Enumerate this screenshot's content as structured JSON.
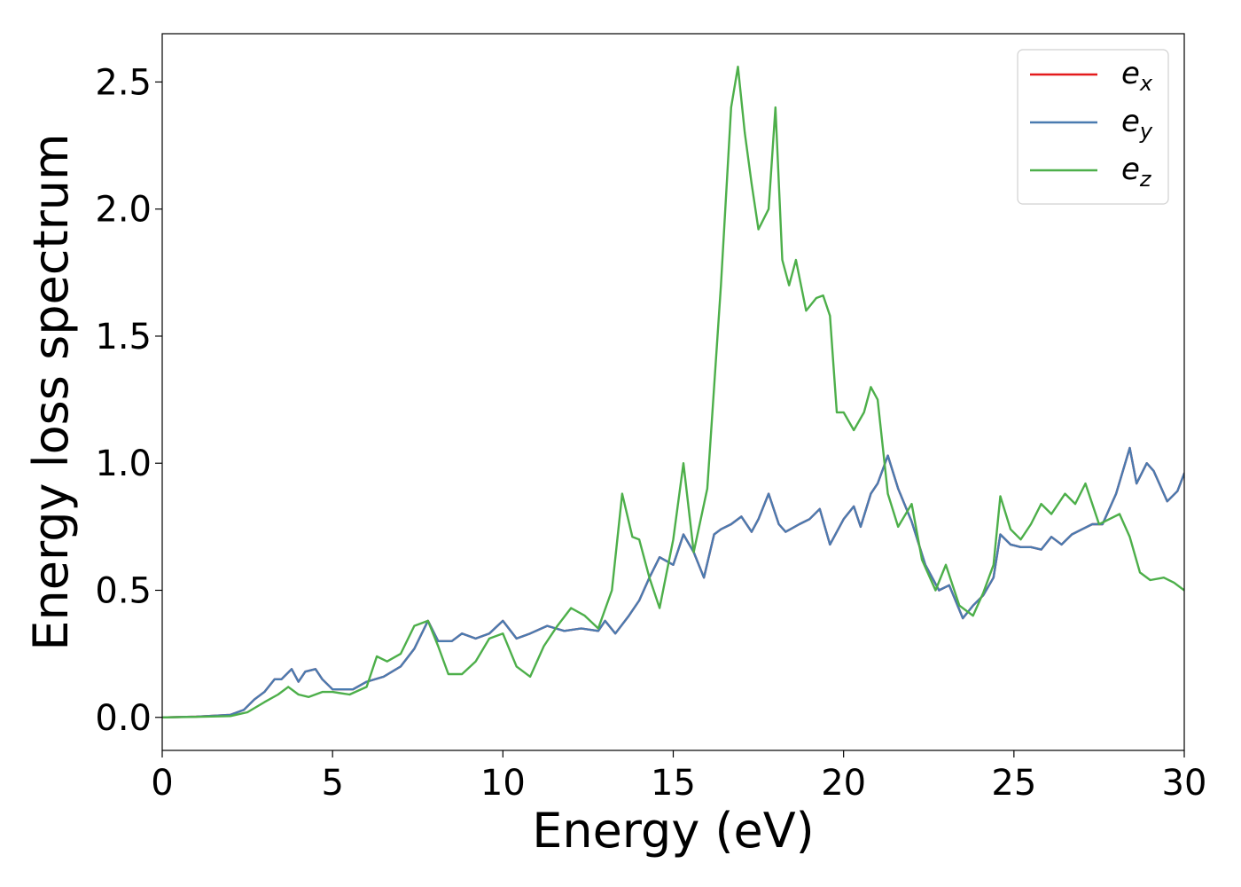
{
  "chart_data": {
    "type": "line",
    "title": "",
    "xlabel": "Energy (eV)",
    "ylabel": "Energy loss spectrum",
    "xlim": [
      0,
      30
    ],
    "ylim": [
      -0.13,
      2.69
    ],
    "xticks": [
      0,
      5,
      10,
      15,
      20,
      25,
      30
    ],
    "xtick_labels": [
      "0",
      "5",
      "10",
      "15",
      "20",
      "25",
      "30"
    ],
    "yticks": [
      0.0,
      0.5,
      1.0,
      1.5,
      2.0,
      2.5
    ],
    "ytick_labels": [
      "0.0",
      "0.5",
      "1.0",
      "1.5",
      "2.0",
      "2.5"
    ],
    "grid": false,
    "legend_position": "top-right",
    "series": [
      {
        "name": "e_x",
        "legend_base": "e",
        "legend_sub": "x",
        "color": "#e41a1c",
        "x": [
          0,
          1,
          2,
          2.4,
          2.7,
          3.0,
          3.3,
          3.5,
          3.8,
          4.0,
          4.2,
          4.5,
          4.7,
          5.0,
          5.3,
          5.6,
          6.0,
          6.5,
          7.0,
          7.4,
          7.8,
          8.1,
          8.5,
          8.8,
          9.2,
          9.6,
          10.0,
          10.4,
          10.8,
          11.3,
          11.8,
          12.3,
          12.8,
          13.0,
          13.3,
          13.7,
          14.0,
          14.3,
          14.6,
          15.0,
          15.3,
          15.6,
          15.9,
          16.2,
          16.4,
          16.7,
          17.0,
          17.3,
          17.5,
          17.8,
          18.1,
          18.3,
          18.7,
          19.0,
          19.3,
          19.6,
          20.0,
          20.3,
          20.5,
          20.8,
          21.0,
          21.3,
          21.6,
          22.0,
          22.4,
          22.8,
          23.1,
          23.5,
          23.8,
          24.1,
          24.4,
          24.6,
          24.9,
          25.2,
          25.5,
          25.8,
          26.1,
          26.4,
          26.7,
          27.0,
          27.3,
          27.6,
          28.0,
          28.4,
          28.6,
          28.9,
          29.1,
          29.5,
          29.8,
          30.0
        ],
        "y": [
          0,
          0.003,
          0.01,
          0.03,
          0.07,
          0.1,
          0.15,
          0.15,
          0.19,
          0.14,
          0.18,
          0.19,
          0.15,
          0.11,
          0.11,
          0.11,
          0.14,
          0.16,
          0.2,
          0.27,
          0.38,
          0.3,
          0.3,
          0.33,
          0.31,
          0.33,
          0.38,
          0.31,
          0.33,
          0.36,
          0.34,
          0.35,
          0.34,
          0.38,
          0.33,
          0.4,
          0.46,
          0.55,
          0.63,
          0.6,
          0.72,
          0.65,
          0.55,
          0.72,
          0.74,
          0.76,
          0.79,
          0.73,
          0.78,
          0.88,
          0.76,
          0.73,
          0.76,
          0.78,
          0.82,
          0.68,
          0.78,
          0.83,
          0.75,
          0.88,
          0.92,
          1.03,
          0.9,
          0.77,
          0.6,
          0.5,
          0.52,
          0.39,
          0.44,
          0.48,
          0.55,
          0.72,
          0.68,
          0.67,
          0.67,
          0.66,
          0.71,
          0.68,
          0.72,
          0.74,
          0.76,
          0.76,
          0.88,
          1.06,
          0.92,
          1.0,
          0.97,
          0.85,
          0.89,
          0.96
        ]
      },
      {
        "name": "e_y",
        "legend_base": "e",
        "legend_sub": "y",
        "color": "#4a7bb0",
        "x": [
          0,
          1,
          2,
          2.4,
          2.7,
          3.0,
          3.3,
          3.5,
          3.8,
          4.0,
          4.2,
          4.5,
          4.7,
          5.0,
          5.3,
          5.6,
          6.0,
          6.5,
          7.0,
          7.4,
          7.8,
          8.1,
          8.5,
          8.8,
          9.2,
          9.6,
          10.0,
          10.4,
          10.8,
          11.3,
          11.8,
          12.3,
          12.8,
          13.0,
          13.3,
          13.7,
          14.0,
          14.3,
          14.6,
          15.0,
          15.3,
          15.6,
          15.9,
          16.2,
          16.4,
          16.7,
          17.0,
          17.3,
          17.5,
          17.8,
          18.1,
          18.3,
          18.7,
          19.0,
          19.3,
          19.6,
          20.0,
          20.3,
          20.5,
          20.8,
          21.0,
          21.3,
          21.6,
          22.0,
          22.4,
          22.8,
          23.1,
          23.5,
          23.8,
          24.1,
          24.4,
          24.6,
          24.9,
          25.2,
          25.5,
          25.8,
          26.1,
          26.4,
          26.7,
          27.0,
          27.3,
          27.6,
          28.0,
          28.4,
          28.6,
          28.9,
          29.1,
          29.5,
          29.8,
          30.0
        ],
        "y": [
          0,
          0.003,
          0.01,
          0.03,
          0.07,
          0.1,
          0.15,
          0.15,
          0.19,
          0.14,
          0.18,
          0.19,
          0.15,
          0.11,
          0.11,
          0.11,
          0.14,
          0.16,
          0.2,
          0.27,
          0.38,
          0.3,
          0.3,
          0.33,
          0.31,
          0.33,
          0.38,
          0.31,
          0.33,
          0.36,
          0.34,
          0.35,
          0.34,
          0.38,
          0.33,
          0.4,
          0.46,
          0.55,
          0.63,
          0.6,
          0.72,
          0.65,
          0.55,
          0.72,
          0.74,
          0.76,
          0.79,
          0.73,
          0.78,
          0.88,
          0.76,
          0.73,
          0.76,
          0.78,
          0.82,
          0.68,
          0.78,
          0.83,
          0.75,
          0.88,
          0.92,
          1.03,
          0.9,
          0.77,
          0.6,
          0.5,
          0.52,
          0.39,
          0.44,
          0.48,
          0.55,
          0.72,
          0.68,
          0.67,
          0.67,
          0.66,
          0.71,
          0.68,
          0.72,
          0.74,
          0.76,
          0.76,
          0.88,
          1.06,
          0.92,
          1.0,
          0.97,
          0.85,
          0.89,
          0.96
        ]
      },
      {
        "name": "e_z",
        "legend_base": "e",
        "legend_sub": "z",
        "color": "#4daf4a",
        "x": [
          0,
          1,
          2,
          2.5,
          3.0,
          3.4,
          3.7,
          4.0,
          4.3,
          4.7,
          5.0,
          5.5,
          6.0,
          6.3,
          6.6,
          7.0,
          7.4,
          7.8,
          8.1,
          8.4,
          8.8,
          9.2,
          9.6,
          10.0,
          10.4,
          10.8,
          11.2,
          11.6,
          12.0,
          12.4,
          12.8,
          13.2,
          13.5,
          13.8,
          14.0,
          14.3,
          14.6,
          15.0,
          15.3,
          15.6,
          16.0,
          16.4,
          16.7,
          16.9,
          17.1,
          17.3,
          17.5,
          17.8,
          18.0,
          18.2,
          18.4,
          18.6,
          18.9,
          19.2,
          19.4,
          19.6,
          19.8,
          20.0,
          20.3,
          20.6,
          20.8,
          21.0,
          21.3,
          21.6,
          22.0,
          22.3,
          22.7,
          23.0,
          23.4,
          23.8,
          24.1,
          24.4,
          24.6,
          24.9,
          25.2,
          25.5,
          25.8,
          26.1,
          26.5,
          26.8,
          27.1,
          27.5,
          27.8,
          28.1,
          28.4,
          28.7,
          29.0,
          29.4,
          29.7,
          30.0
        ],
        "y": [
          0,
          0.002,
          0.005,
          0.02,
          0.06,
          0.09,
          0.12,
          0.09,
          0.08,
          0.1,
          0.1,
          0.09,
          0.12,
          0.24,
          0.22,
          0.25,
          0.36,
          0.38,
          0.28,
          0.17,
          0.17,
          0.22,
          0.31,
          0.33,
          0.2,
          0.16,
          0.28,
          0.36,
          0.43,
          0.4,
          0.35,
          0.5,
          0.88,
          0.71,
          0.7,
          0.55,
          0.43,
          0.7,
          1.0,
          0.65,
          0.9,
          1.7,
          2.4,
          2.56,
          2.3,
          2.1,
          1.92,
          2.0,
          2.4,
          1.8,
          1.7,
          1.8,
          1.6,
          1.65,
          1.66,
          1.58,
          1.2,
          1.2,
          1.13,
          1.2,
          1.3,
          1.25,
          0.88,
          0.75,
          0.84,
          0.62,
          0.5,
          0.6,
          0.44,
          0.4,
          0.49,
          0.6,
          0.87,
          0.74,
          0.7,
          0.76,
          0.84,
          0.8,
          0.88,
          0.84,
          0.92,
          0.76,
          0.78,
          0.8,
          0.71,
          0.57,
          0.54,
          0.55,
          0.53,
          0.5
        ]
      }
    ]
  }
}
